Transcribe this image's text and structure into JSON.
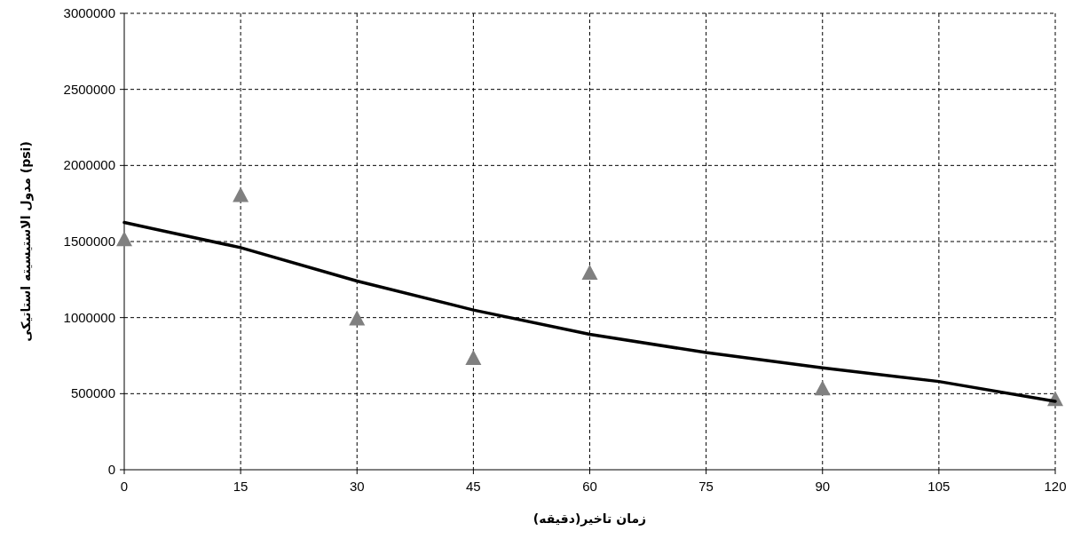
{
  "chart_data": {
    "type": "scatter",
    "xlabel": "زمان تاخیر(دقیقه)",
    "ylabel": "مدول الاستیسیته استاتیکی (psi)",
    "xlim": [
      0,
      120
    ],
    "ylim": [
      0,
      3000000
    ],
    "xticks": [
      0,
      15,
      30,
      45,
      60,
      75,
      90,
      105,
      120
    ],
    "yticks": [
      0,
      500000,
      1000000,
      1500000,
      2000000,
      2500000,
      3000000
    ],
    "grid": true,
    "marker": "triangle",
    "series": [
      {
        "type": "scatter",
        "color": "#808080",
        "x": [
          0,
          15,
          30,
          45,
          60,
          90,
          120
        ],
        "values": [
          1510000,
          1800000,
          990000,
          730000,
          1290000,
          530000,
          460000
        ]
      },
      {
        "type": "line",
        "color": "#000000",
        "marker": "none",
        "x": [
          0,
          15,
          30,
          45,
          60,
          75,
          90,
          105,
          120
        ],
        "values": [
          1625000,
          1460000,
          1240000,
          1050000,
          890000,
          770000,
          670000,
          580000,
          450000
        ]
      }
    ]
  }
}
